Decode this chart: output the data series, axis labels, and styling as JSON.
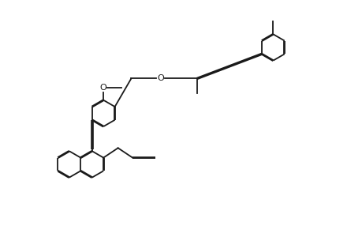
{
  "bg_color": "#ffffff",
  "line_color": "#1a1a1a",
  "line_width": 1.3,
  "figsize": [
    4.6,
    3.0
  ],
  "dpi": 100
}
